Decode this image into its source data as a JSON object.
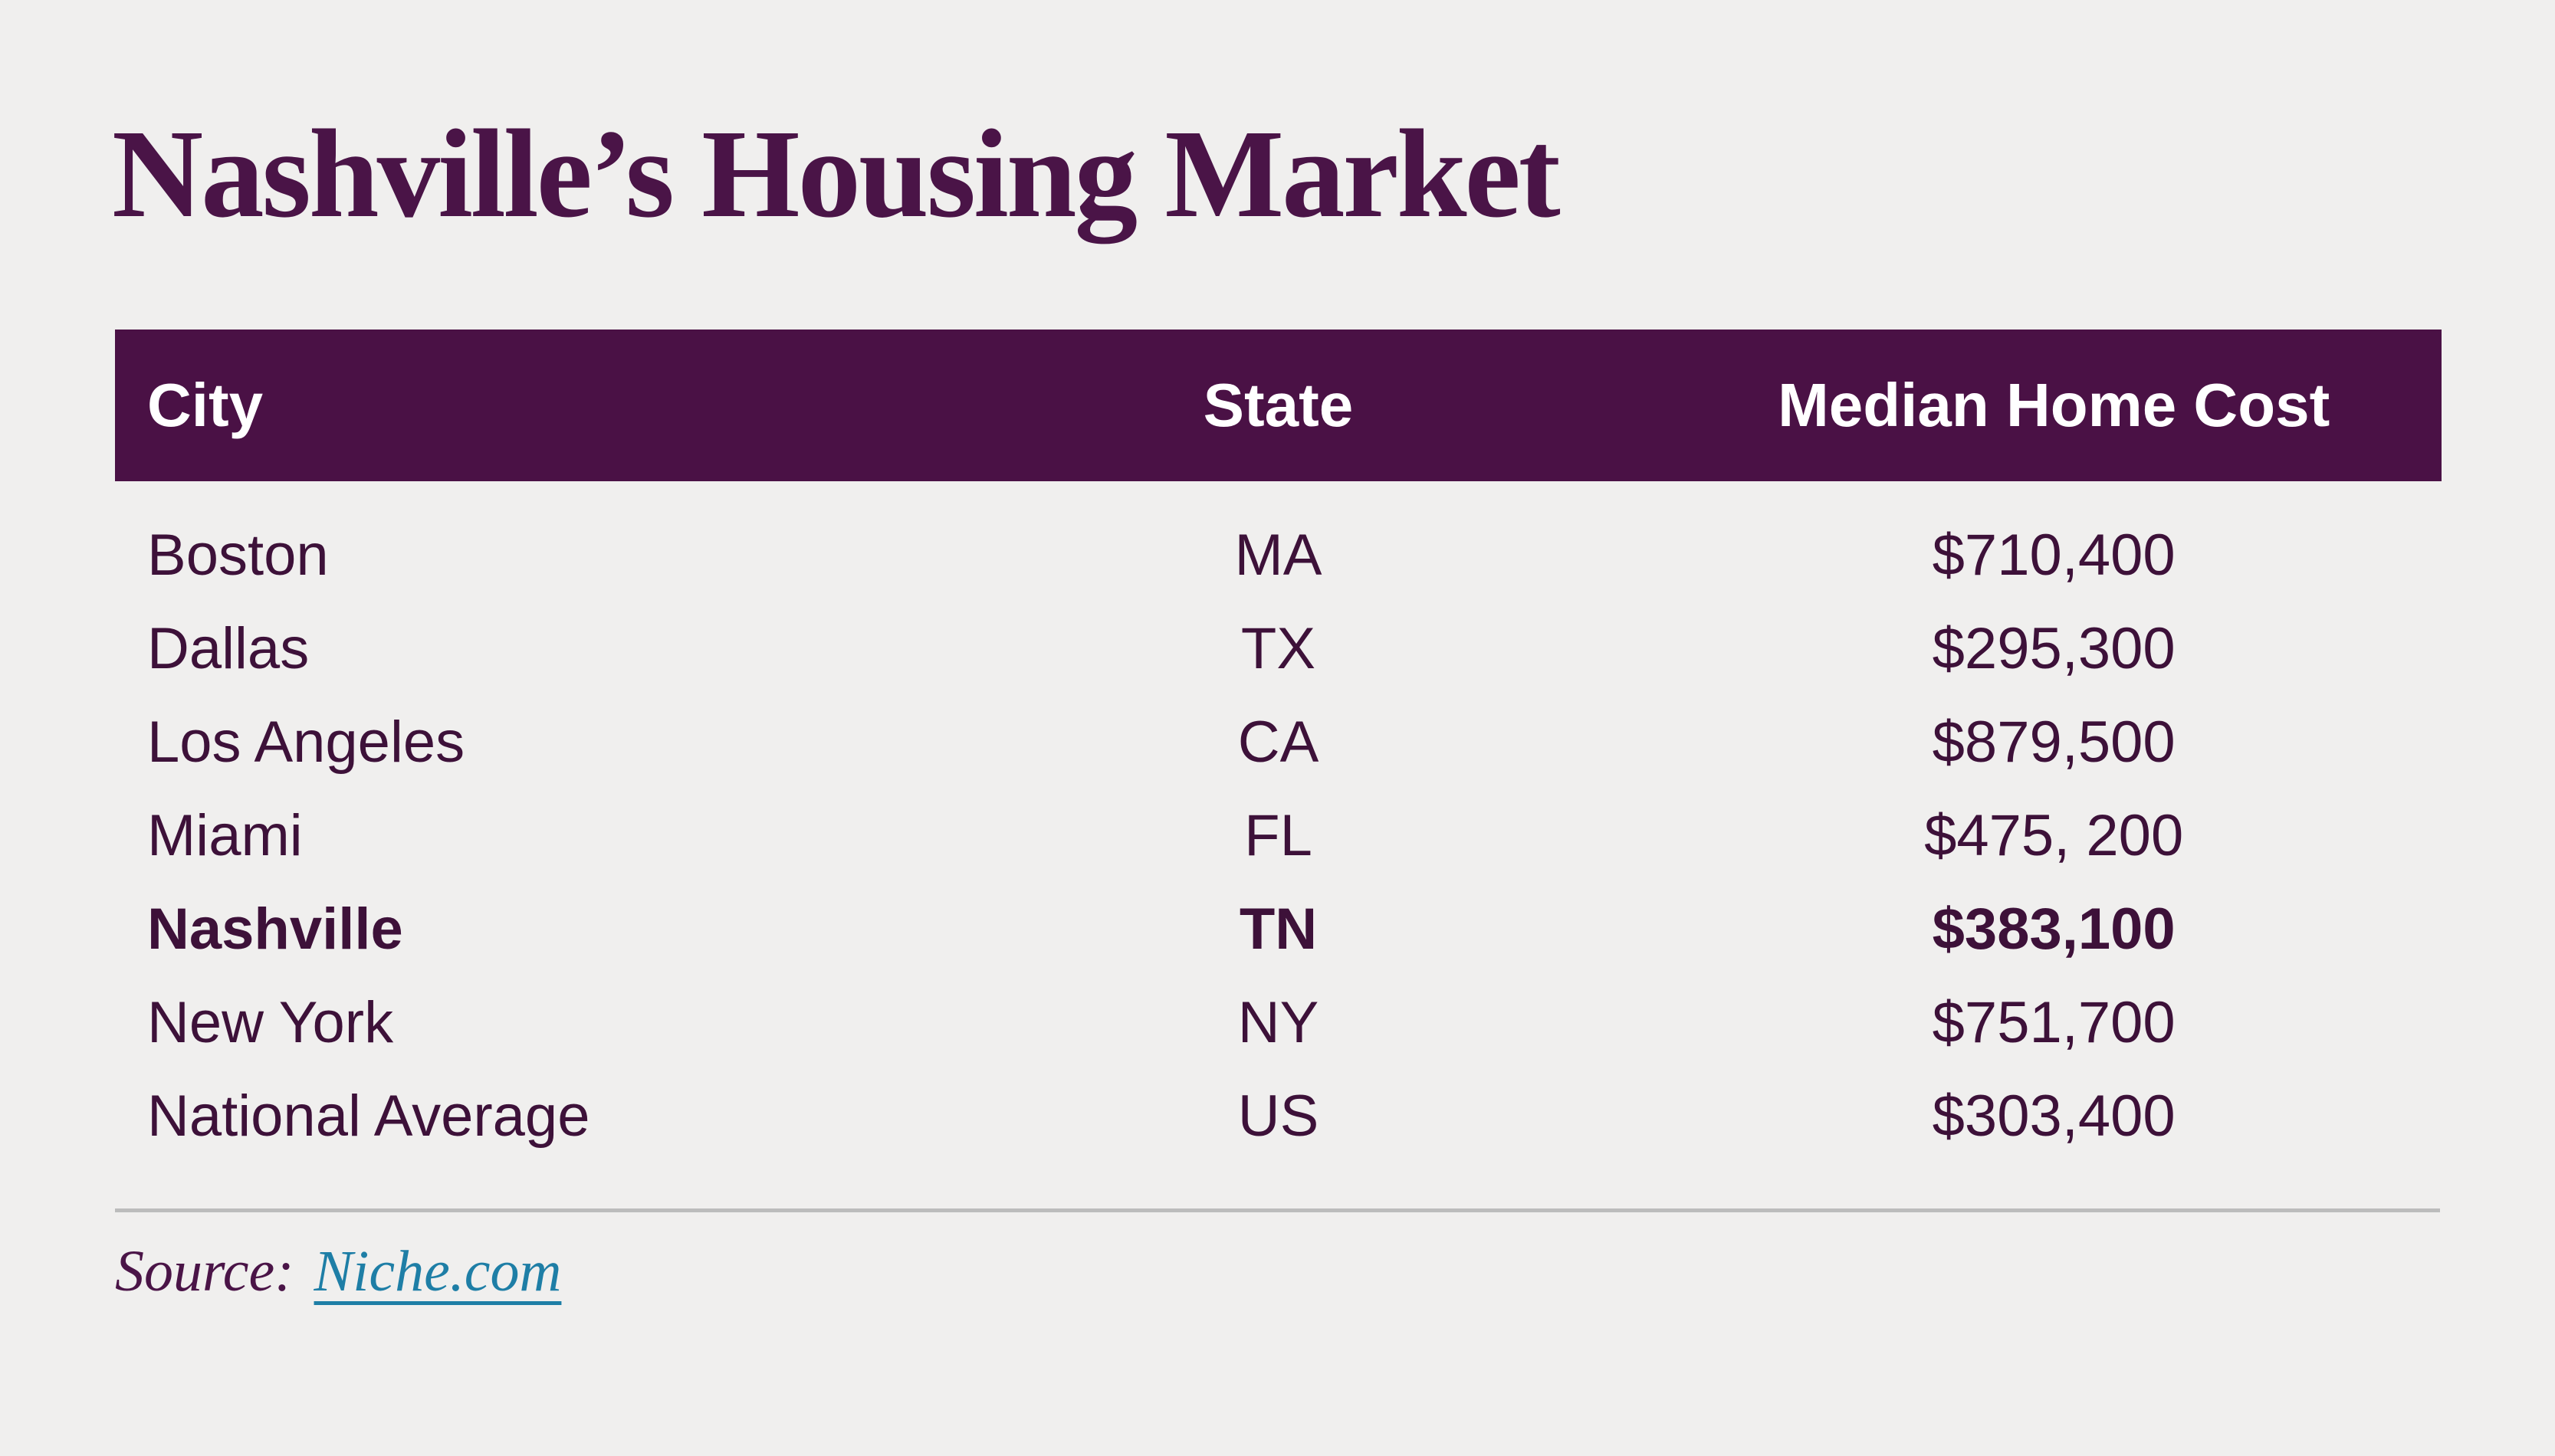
{
  "page": {
    "background_color": "#f0efee",
    "title": "Nashville’s Housing Market",
    "title_color": "#4a1447"
  },
  "table": {
    "header": {
      "background_color": "#4a1145",
      "text_color": "#ffffff",
      "columns": [
        {
          "label": "City"
        },
        {
          "label": "State"
        },
        {
          "label": "Median Home Cost"
        }
      ]
    },
    "row_text_color": "#3d1139",
    "rows": [
      {
        "city": "Boston",
        "state": "MA",
        "cost": "$710,400",
        "highlighted": false
      },
      {
        "city": "Dallas",
        "state": "TX",
        "cost": "$295,300",
        "highlighted": false
      },
      {
        "city": "Los Angeles",
        "state": "CA",
        "cost": "$879,500",
        "highlighted": false
      },
      {
        "city": "Miami",
        "state": "FL",
        "cost": "$475, 200",
        "highlighted": false
      },
      {
        "city": "Nashville",
        "state": "TN",
        "cost": "$383,100",
        "highlighted": true
      },
      {
        "city": "New York",
        "state": "NY",
        "cost": "$751,700",
        "highlighted": false
      },
      {
        "city": "National Average",
        "state": "US",
        "cost": "$303,400",
        "highlighted": false
      }
    ]
  },
  "source": {
    "prefix": "Source:",
    "link_text": "Niche.com",
    "link_color": "#1e7ea6"
  },
  "chart_data": {
    "type": "table",
    "title": "Nashville’s Housing Market",
    "columns": [
      "City",
      "State",
      "Median Home Cost"
    ],
    "rows": [
      [
        "Boston",
        "MA",
        "$710,400"
      ],
      [
        "Dallas",
        "TX",
        "$295,300"
      ],
      [
        "Los Angeles",
        "CA",
        "$879,500"
      ],
      [
        "Miami",
        "FL",
        "$475, 200"
      ],
      [
        "Nashville",
        "TN",
        "$383,100"
      ],
      [
        "New York",
        "NY",
        "$751,700"
      ],
      [
        "National Average",
        "US",
        "$303,400"
      ]
    ],
    "median_home_cost_numeric": [
      710400,
      295300,
      879500,
      475200,
      383100,
      751700,
      303400
    ],
    "highlighted_row": "Nashville",
    "source": "Niche.com"
  }
}
